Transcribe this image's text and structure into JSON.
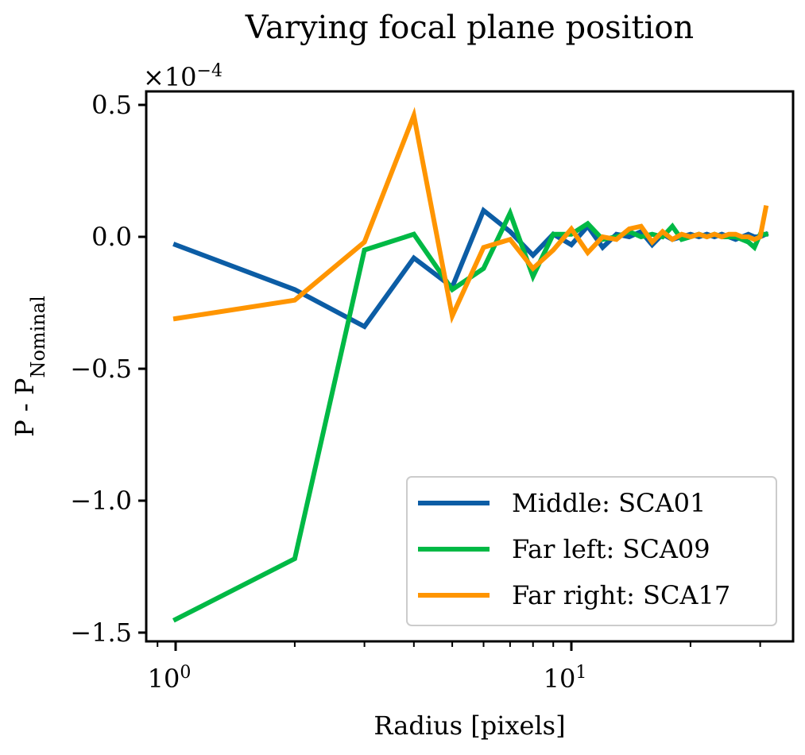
{
  "chart_data": {
    "type": "line",
    "title": "Varying focal plane position",
    "xlabel": "Radius [pixels]",
    "ylabel": "P - P",
    "ylabel_subscript": "Nominal",
    "y_offset_text": "×10",
    "y_offset_exponent": "−4",
    "x_scale": "log",
    "xlim": [
      0.86,
      40
    ],
    "ylim": [
      -1.55,
      0.55
    ],
    "x_ticks": [
      {
        "value": 1,
        "base": "10",
        "exp": "0"
      },
      {
        "value": 10,
        "base": "10",
        "exp": "1"
      }
    ],
    "y_ticks": [
      {
        "value": 0.5,
        "label": "0.5"
      },
      {
        "value": 0.0,
        "label": "0.0"
      },
      {
        "value": -0.5,
        "label": "−0.5"
      },
      {
        "value": -1.0,
        "label": "−1.0"
      },
      {
        "value": -1.5,
        "label": "−1.5"
      }
    ],
    "legend_position": "lower-right",
    "grid": false,
    "x": [
      1,
      2,
      3,
      4,
      5,
      6,
      7,
      8,
      9,
      10,
      11,
      12,
      13,
      14,
      15,
      16,
      17,
      18,
      19,
      20,
      21,
      22,
      23,
      24,
      25,
      26,
      27,
      28,
      29,
      30,
      31
    ],
    "series": [
      {
        "name": "Middle: SCA01",
        "color": "#0c5da5",
        "values": [
          -0.03,
          -0.2,
          -0.34,
          -0.08,
          -0.19,
          0.1,
          0.02,
          -0.07,
          0.01,
          -0.03,
          0.04,
          -0.04,
          0.01,
          0.0,
          0.02,
          -0.03,
          0.01,
          -0.01,
          0.0,
          0.01,
          0.0,
          0.01,
          0.0,
          0.01,
          0.0,
          -0.01,
          0.0,
          0.01,
          0.0,
          0.0,
          0.01
        ]
      },
      {
        "name": "Far left: SCA09",
        "color": "#00b945",
        "values": [
          -1.45,
          -1.22,
          -0.05,
          0.01,
          -0.2,
          -0.12,
          0.09,
          -0.15,
          0.01,
          0.01,
          0.05,
          -0.01,
          0.0,
          0.02,
          0.0,
          0.01,
          0.0,
          0.04,
          -0.01,
          0.0,
          0.01,
          0.0,
          0.01,
          0.0,
          0.0,
          0.0,
          -0.01,
          -0.02,
          -0.04,
          0.01,
          0.01
        ]
      },
      {
        "name": "Far right: SCA17",
        "color": "#ff9500",
        "values": [
          -0.31,
          -0.24,
          -0.02,
          0.46,
          -0.3,
          -0.04,
          -0.01,
          -0.12,
          -0.05,
          0.03,
          -0.06,
          0.0,
          -0.01,
          0.03,
          0.04,
          -0.02,
          0.02,
          -0.01,
          0.01,
          0.0,
          0.01,
          0.0,
          0.01,
          0.0,
          0.01,
          0.01,
          0.0,
          0.0,
          -0.01,
          0.0,
          0.11
        ]
      }
    ]
  }
}
